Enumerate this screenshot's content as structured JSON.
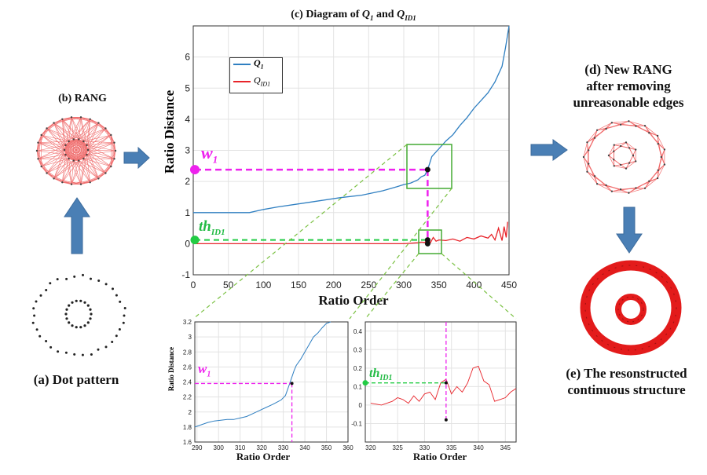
{
  "captions": {
    "a": "(a) Dot pattern",
    "b": "(b) RANG",
    "c_prefix": "(c) Diagram of ",
    "c_q": "Q",
    "c_q_sub": "1",
    "c_and": " and ",
    "c_qid": "Q",
    "c_qid_sub": "ID1",
    "d_line1": "(d) New RANG",
    "d_line2": "after removing",
    "d_line3": "unreasonable edges",
    "e_line1": "(e) The resonstructed",
    "e_line2": "continuous structure"
  },
  "annotations": {
    "w": "w",
    "w_sub": "1",
    "th": "th",
    "th_sub": "ID1"
  },
  "colors": {
    "q1": "#2f7fc1",
    "qid1": "#e8242a",
    "magenta": "#ee22ee",
    "green": "#22cc44",
    "box": "#44aa33",
    "arrow": "#4a7fb5",
    "graph_red": "#e33"
  },
  "chart_data": [
    {
      "type": "line",
      "title": "(c) Diagram of Q1 and QID1",
      "xlabel": "Ratio Order",
      "ylabel": "Ratio Distance",
      "xlim": [
        0,
        450
      ],
      "ylim": [
        -1,
        7
      ],
      "xticks": [
        0,
        50,
        100,
        150,
        200,
        250,
        300,
        350,
        400,
        450
      ],
      "yticks": [
        -1,
        0,
        1,
        2,
        3,
        4,
        5,
        6
      ],
      "legend": "top-left",
      "grid": true,
      "series": [
        {
          "name": "Q1",
          "x": [
            0,
            40,
            80,
            100,
            120,
            150,
            180,
            210,
            240,
            270,
            290,
            300,
            310,
            320,
            325,
            330,
            334,
            340,
            350,
            360,
            370,
            380,
            390,
            400,
            410,
            420,
            430,
            440,
            445,
            450
          ],
          "y": [
            1.0,
            1.0,
            1.0,
            1.1,
            1.18,
            1.28,
            1.38,
            1.48,
            1.56,
            1.7,
            1.83,
            1.9,
            1.95,
            2.05,
            2.15,
            2.2,
            2.38,
            2.8,
            3.05,
            3.3,
            3.5,
            3.8,
            4.05,
            4.35,
            4.6,
            4.85,
            5.2,
            5.7,
            6.3,
            7.0
          ]
        },
        {
          "name": "QID1",
          "x": [
            0,
            100,
            200,
            300,
            320,
            325,
            330,
            334,
            338,
            342,
            346,
            350,
            360,
            370,
            380,
            390,
            400,
            410,
            420,
            425,
            430,
            435,
            440,
            443,
            446,
            448
          ],
          "y": [
            0.0,
            0.0,
            0.0,
            0.0,
            0.03,
            0.05,
            0.04,
            0.14,
            0.03,
            0.2,
            0.08,
            0.12,
            0.1,
            0.15,
            0.08,
            0.2,
            0.15,
            0.25,
            0.18,
            0.3,
            0.12,
            0.5,
            0.1,
            0.55,
            0.2,
            0.7
          ]
        }
      ],
      "markers": [
        {
          "x": 334,
          "y": 2.38
        },
        {
          "x": 334,
          "y": 0.12
        },
        {
          "x": 334,
          "y": 0.0
        }
      ],
      "w1_y": 2.38,
      "th_y": 0.12
    },
    {
      "type": "line",
      "xlabel": "Ratio Order",
      "ylabel": "Ratio Distance",
      "xlim": [
        289,
        360
      ],
      "ylim": [
        1.6,
        3.2
      ],
      "xticks": [
        290,
        300,
        310,
        320,
        330,
        340,
        350,
        360
      ],
      "yticks": [
        1.6,
        1.8,
        2.0,
        2.2,
        2.4,
        2.6,
        2.8,
        3.0,
        3.2
      ],
      "grid": true,
      "series": [
        {
          "name": "Q1",
          "x": [
            289,
            292,
            295,
            298,
            301,
            304,
            307,
            310,
            313,
            316,
            319,
            322,
            325,
            327,
            329,
            331,
            333,
            335,
            336,
            338,
            340,
            342,
            344,
            346,
            348,
            350,
            352
          ],
          "y": [
            1.8,
            1.83,
            1.86,
            1.88,
            1.89,
            1.9,
            1.9,
            1.92,
            1.94,
            1.98,
            2.02,
            2.06,
            2.1,
            2.13,
            2.16,
            2.22,
            2.38,
            2.55,
            2.62,
            2.7,
            2.8,
            2.9,
            3.0,
            3.05,
            3.12,
            3.18,
            3.2
          ]
        }
      ],
      "marker": {
        "x": 334,
        "y": 2.38
      }
    },
    {
      "type": "line",
      "xlabel": "Ratio Order",
      "xlim": [
        319,
        347
      ],
      "ylim": [
        -0.2,
        0.45
      ],
      "xticks": [
        320,
        325,
        330,
        335,
        340,
        345
      ],
      "yticks": [
        -0.1,
        0,
        0.1,
        0.2,
        0.3,
        0.4
      ],
      "grid": true,
      "series": [
        {
          "name": "QID1",
          "x": [
            320,
            322,
            324,
            325,
            326,
            327,
            328,
            329,
            330,
            331,
            332,
            333,
            334,
            335,
            336,
            337,
            338,
            339,
            340,
            341,
            342,
            343,
            344,
            345,
            346,
            347
          ],
          "y": [
            0.01,
            0.0,
            0.02,
            0.04,
            0.03,
            0.01,
            0.05,
            0.02,
            0.06,
            0.07,
            0.03,
            0.12,
            0.14,
            0.06,
            0.1,
            0.07,
            0.12,
            0.2,
            0.21,
            0.13,
            0.11,
            0.02,
            0.03,
            0.04,
            0.07,
            0.09
          ]
        }
      ],
      "markers": [
        {
          "x": 334,
          "y": 0.12
        },
        {
          "x": 334,
          "y": -0.08
        }
      ]
    }
  ]
}
